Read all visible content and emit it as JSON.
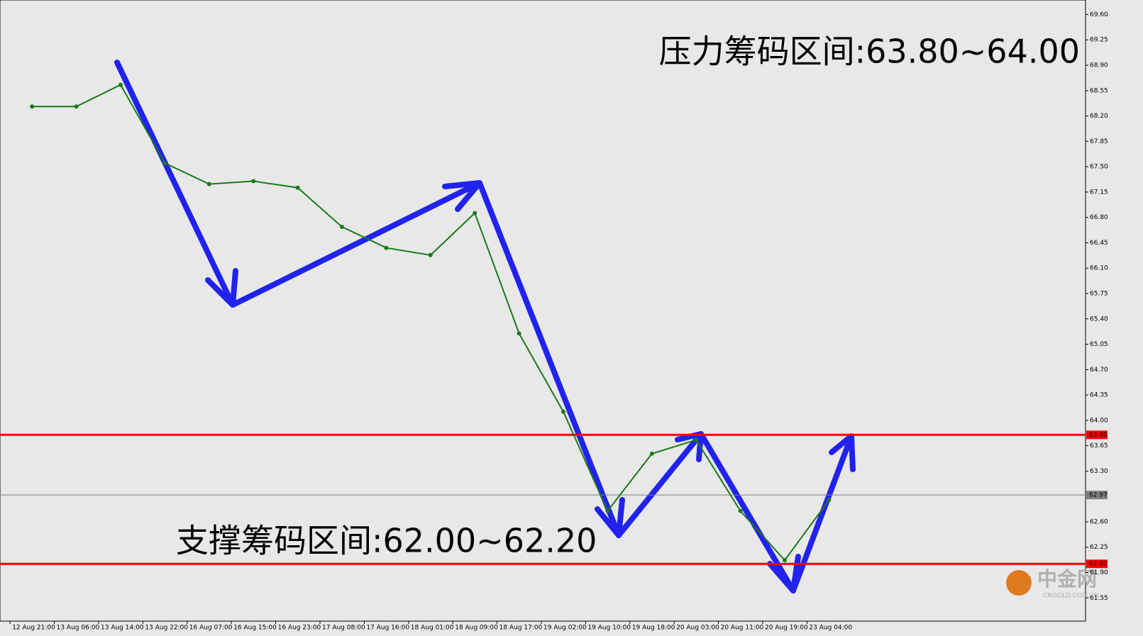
{
  "chart_data": {
    "type": "line",
    "annotations": [
      "压力筹码区间:63.80~64.00",
      "支撑筹码区间:62.00~62.20"
    ],
    "categories": [
      "12 Aug 21:00",
      "13 Aug 06:00",
      "13 Aug 14:00",
      "13 Aug 22:00",
      "16 Aug 07:00",
      "16 Aug 15:00",
      "16 Aug 23:00",
      "17 Aug 08:00",
      "17 Aug 16:00",
      "18 Aug 01:00",
      "18 Aug 09:00",
      "18 Aug 17:00",
      "19 Aug 02:00",
      "19 Aug 10:00",
      "19 Aug 18:00",
      "20 Aug 03:00",
      "20 Aug 11:00",
      "20 Aug 19:00",
      "23 Aug 04:00"
    ],
    "values": [
      68.33,
      68.33,
      68.63,
      67.55,
      67.26,
      67.3,
      67.21,
      66.67,
      66.38,
      66.28,
      66.86,
      65.2,
      64.12,
      62.75,
      63.54,
      63.73,
      62.75,
      62.07,
      62.9
    ],
    "color": "#1a7a1a",
    "ylim": [
      61.23,
      69.8
    ],
    "yticks": [
      {
        "value": 69.6,
        "label": "69.60"
      },
      69.25,
      {
        "value": 68.9,
        "label": "68.90"
      },
      68.55,
      {
        "value": 68.2,
        "label": "68.20"
      },
      67.85,
      {
        "value": 67.5,
        "label": "67.50"
      },
      67.15,
      {
        "value": 66.8,
        "label": "66.80"
      },
      66.45,
      {
        "value": 66.1,
        "label": "66.10"
      },
      65.75,
      {
        "value": 65.4,
        "label": "65.40"
      },
      65.05,
      {
        "value": 64.7,
        "label": "64.70"
      },
      64.35,
      {
        "value": 64.0,
        "label": "64.00"
      },
      63.65,
      {
        "value": 63.3,
        "label": "63.30"
      },
      {
        "value": 62.6,
        "label": "62.60"
      },
      62.25,
      {
        "value": 61.9,
        "label": "61.90"
      },
      61.55
    ],
    "levels": [
      {
        "value": 63.8,
        "label": "63.80",
        "color": "#ff0000"
      },
      {
        "value": 62.02,
        "label": "62.02",
        "color": "#ff0000"
      },
      {
        "value": 62.97,
        "label": "62.97",
        "color": "#808080"
      }
    ]
  },
  "watermark": [
    "中金网",
    "CNGOLD.COM.CN"
  ]
}
